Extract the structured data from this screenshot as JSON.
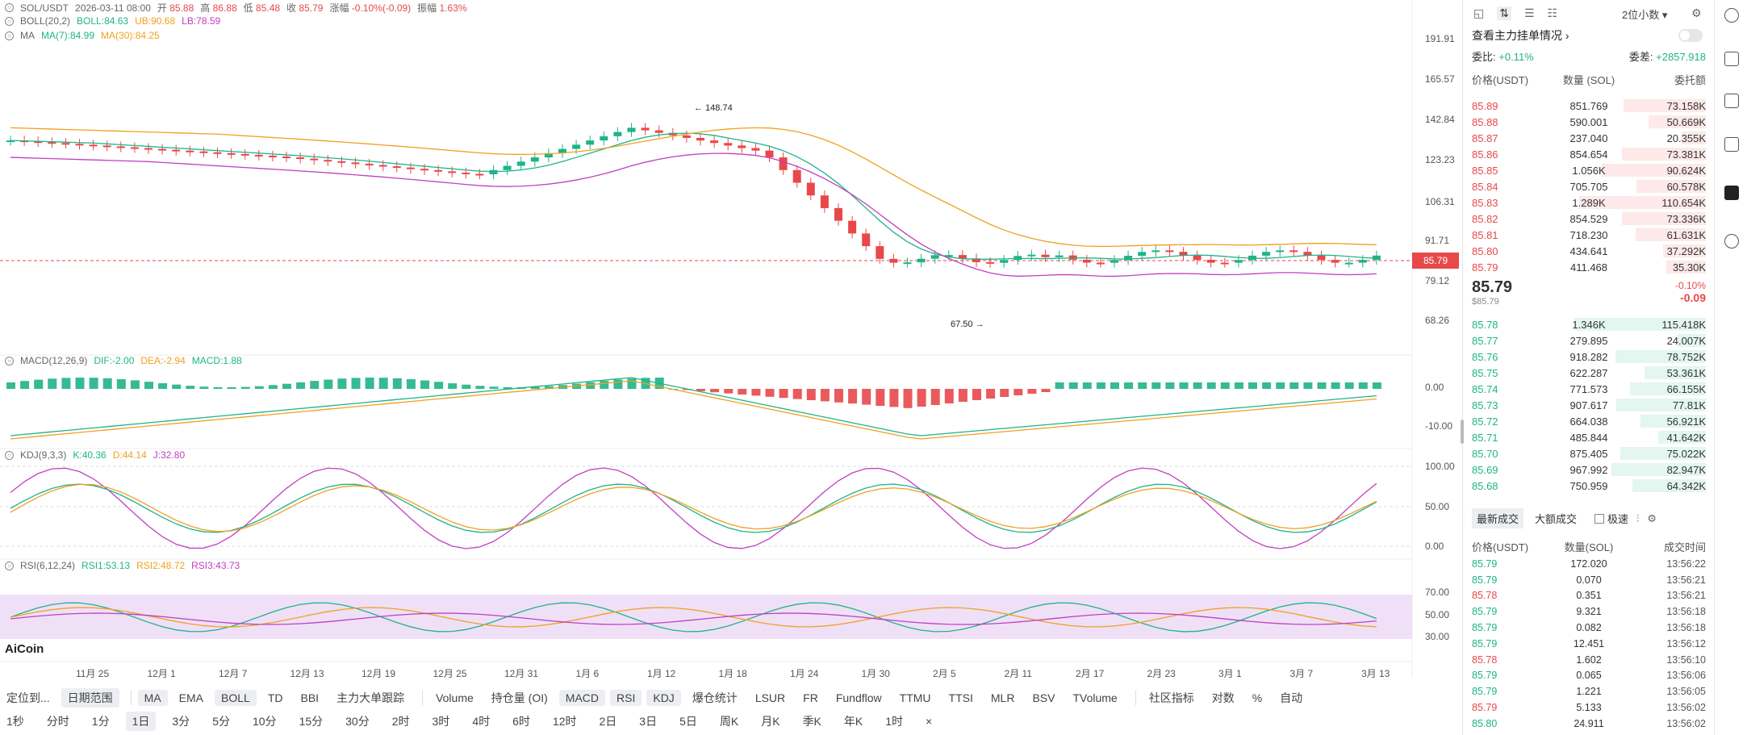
{
  "header": {
    "symbol": "SOL/USDT",
    "datetime": "2026-03-11 08:00",
    "open_label": "开",
    "open": "85.88",
    "high_label": "高",
    "high": "86.88",
    "low_label": "低",
    "low": "85.48",
    "close_label": "收",
    "close": "85.79",
    "change_label": "涨幅",
    "change": "-0.10%(-0.09)",
    "amp_label": "振幅",
    "amp": "1.63%"
  },
  "boll": {
    "name": "BOLL(20,2)",
    "boll": "BOLL:84.63",
    "ub": "UB:90.68",
    "lb": "LB:78.59"
  },
  "ma": {
    "name": "MA",
    "ma7": "MA(7):84.99",
    "ma30": "MA(30):84.25"
  },
  "macd": {
    "name": "MACD(12,26,9)",
    "dif": "DIF:-2.00",
    "dea": "DEA:-2.94",
    "macd": "MACD:1.88"
  },
  "kdj": {
    "name": "KDJ(9,3,3)",
    "k": "K:40.36",
    "d": "D:44.14",
    "j": "J:32.80"
  },
  "rsi": {
    "name": "RSI(6,12,24)",
    "rsi1": "RSI1:53.13",
    "rsi2": "RSI2:48.72",
    "rsi3": "RSI3:43.73"
  },
  "annotations": {
    "high": "← 148.74",
    "low": "67.50 →"
  },
  "watermark": "AiCoin",
  "current_price_tag": "85.79",
  "price_axis": [
    "191.91",
    "165.57",
    "142.84",
    "123.23",
    "106.31",
    "91.71",
    "79.12",
    "68.26"
  ],
  "macd_axis": [
    "0.00",
    "-10.00"
  ],
  "kdj_axis": [
    "100.00",
    "50.00",
    "0.00"
  ],
  "rsi_axis": [
    "70.00",
    "50.00",
    "30.00"
  ],
  "time_axis": [
    "11月 25",
    "12月 1",
    "12月 7",
    "12月 13",
    "12月 19",
    "12月 25",
    "12月 31",
    "1月 6",
    "1月 12",
    "1月 18",
    "1月 24",
    "1月 30",
    "2月 5",
    "2月 11",
    "2月 17",
    "2月 23",
    "3月 1",
    "3月 7",
    "3月 13"
  ],
  "toolbar_top": [
    "定位到...",
    "日期范围",
    "MA",
    "EMA",
    "BOLL",
    "TD",
    "BBI",
    "主力大单跟踪",
    "Volume",
    "持仓量 (OI)",
    "MACD",
    "RSI",
    "KDJ",
    "爆仓统计",
    "LSUR",
    "FR",
    "Fundflow",
    "TTMU",
    "TTSI",
    "MLR",
    "BSV",
    "TVolume",
    "社区指标",
    "对数",
    "%",
    "自动"
  ],
  "toolbar_bottom": [
    "1秒",
    "分时",
    "1分",
    "1日",
    "3分",
    "5分",
    "10分",
    "15分",
    "30分",
    "2时",
    "3时",
    "4时",
    "6时",
    "12时",
    "2日",
    "3日",
    "5日",
    "周K",
    "月K",
    "季K",
    "年K",
    "1时",
    "×"
  ],
  "chart_data": {
    "type": "candlestick",
    "title": "SOL/USDT",
    "x_range": [
      "11月 25",
      "3月 13"
    ],
    "y_range": [
      67.5,
      191.91
    ],
    "high": 148.74,
    "low": 67.5,
    "last": 85.79
  },
  "orderbook": {
    "decimals": "2位小数",
    "main_force": "查看主力挂单情况",
    "ratio_label": "委比:",
    "ratio": "+0.11%",
    "diff_label": "委差:",
    "diff": "+2857.918",
    "cols": [
      "价格(USDT)",
      "数量 (SOL)",
      "委托额"
    ],
    "asks": [
      [
        "85.89",
        "851.769",
        "73.158K",
        0.62
      ],
      [
        "85.88",
        "590.001",
        "50.669K",
        0.43
      ],
      [
        "85.87",
        "237.040",
        "20.355K",
        0.18
      ],
      [
        "85.86",
        "854.654",
        "73.381K",
        0.63
      ],
      [
        "85.85",
        "1.056K",
        "90.624K",
        0.78
      ],
      [
        "85.84",
        "705.705",
        "60.578K",
        0.52
      ],
      [
        "85.83",
        "1.289K",
        "110.654K",
        0.95
      ],
      [
        "85.82",
        "854.529",
        "73.336K",
        0.63
      ],
      [
        "85.81",
        "718.230",
        "61.631K",
        0.53
      ],
      [
        "85.80",
        "434.641",
        "37.292K",
        0.32
      ],
      [
        "85.79",
        "411.468",
        "35.30K",
        0.3
      ]
    ],
    "last_price": "85.79",
    "last_sub": "$85.79",
    "last_pct": "-0.10%",
    "last_chg": "-0.09",
    "bids": [
      [
        "85.78",
        "1.346K",
        "115.418K",
        0.99
      ],
      [
        "85.77",
        "279.895",
        "24.007K",
        0.21
      ],
      [
        "85.76",
        "918.282",
        "78.752K",
        0.68
      ],
      [
        "85.75",
        "622.287",
        "53.361K",
        0.46
      ],
      [
        "85.74",
        "771.573",
        "66.155K",
        0.57
      ],
      [
        "85.73",
        "907.617",
        "77.81K",
        0.67
      ],
      [
        "85.72",
        "664.038",
        "56.921K",
        0.49
      ],
      [
        "85.71",
        "485.844",
        "41.642K",
        0.36
      ],
      [
        "85.70",
        "875.405",
        "75.022K",
        0.64
      ],
      [
        "85.69",
        "967.992",
        "82.947K",
        0.71
      ],
      [
        "85.68",
        "750.959",
        "64.342K",
        0.55
      ]
    ]
  },
  "trades": {
    "tab_latest": "最新成交",
    "tab_large": "大额成交",
    "fast": "极速",
    "cols": [
      "价格(USDT)",
      "数量(SOL)",
      "成交时间"
    ],
    "rows": [
      [
        "85.79",
        "172.020",
        "13:56:22",
        "g"
      ],
      [
        "85.79",
        "0.070",
        "13:56:21",
        "g"
      ],
      [
        "85.78",
        "0.351",
        "13:56:21",
        "r"
      ],
      [
        "85.79",
        "9.321",
        "13:56:18",
        "g"
      ],
      [
        "85.79",
        "0.082",
        "13:56:18",
        "g"
      ],
      [
        "85.79",
        "12.451",
        "13:56:12",
        "g"
      ],
      [
        "85.78",
        "1.602",
        "13:56:10",
        "r"
      ],
      [
        "85.79",
        "0.065",
        "13:56:06",
        "g"
      ],
      [
        "85.79",
        "1.221",
        "13:56:05",
        "g"
      ],
      [
        "85.79",
        "5.133",
        "13:56:02",
        "r"
      ],
      [
        "85.80",
        "24.911",
        "13:56:02",
        "g"
      ]
    ]
  }
}
